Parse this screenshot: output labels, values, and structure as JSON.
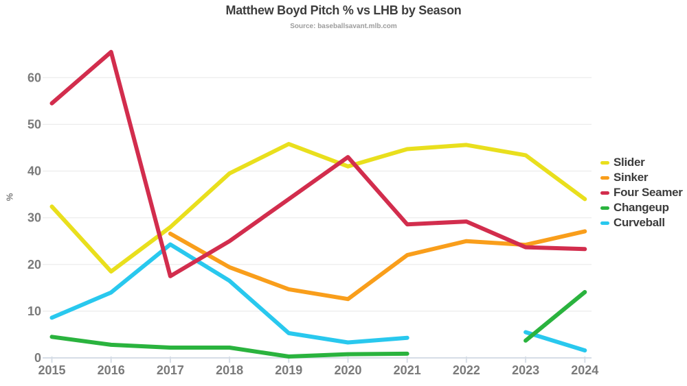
{
  "header": {
    "title": "Matthew Boyd Pitch % vs LHB by Season",
    "subtitle": "Source: baseballsavant.mlb.com"
  },
  "chart_data": {
    "type": "line",
    "title": "Matthew Boyd Pitch % vs LHB by Season",
    "subtitle": "Source: baseballsavant.mlb.com",
    "xlabel": "",
    "ylabel": "%",
    "x": [
      2015,
      2016,
      2017,
      2018,
      2019,
      2020,
      2021,
      2022,
      2023,
      2024
    ],
    "yticks": [
      0,
      10,
      20,
      30,
      40,
      50,
      60
    ],
    "ylim": [
      0,
      68
    ],
    "grid": true,
    "legend_position": "right",
    "series": [
      {
        "name": "Slider",
        "color": "#e9df1d",
        "values": [
          32.4,
          18.5,
          28.0,
          39.5,
          45.8,
          41.0,
          44.7,
          45.6,
          43.4,
          34.0
        ]
      },
      {
        "name": "Sinker",
        "color": "#f99e1b",
        "values": [
          null,
          null,
          26.6,
          19.4,
          14.7,
          12.6,
          22.0,
          25.0,
          24.2,
          27.1
        ]
      },
      {
        "name": "Four Seamer",
        "color": "#d22d4d",
        "values": [
          54.5,
          65.5,
          17.5,
          25.0,
          34.0,
          43.0,
          28.6,
          29.2,
          23.7,
          23.3
        ]
      },
      {
        "name": "Changeup",
        "color": "#2ab33e",
        "values": [
          4.5,
          2.8,
          2.2,
          2.2,
          0.3,
          0.8,
          0.9,
          null,
          3.7,
          14.1
        ]
      },
      {
        "name": "Curveball",
        "color": "#29c8ee",
        "values": [
          8.6,
          14.0,
          24.3,
          16.5,
          5.3,
          3.3,
          4.3,
          null,
          5.5,
          1.6
        ]
      }
    ],
    "draw_order": [
      "Slider",
      "Sinker",
      "Curveball",
      "Four Seamer",
      "Changeup"
    ],
    "colors": {
      "title_text": "#3d3d3d",
      "subtitle_text": "#9c9c9c",
      "axis_text": "#7a7a7a",
      "legend_text": "#3b3b3b",
      "gridline": "#ececec",
      "axis_line": "#d6dde6"
    }
  }
}
